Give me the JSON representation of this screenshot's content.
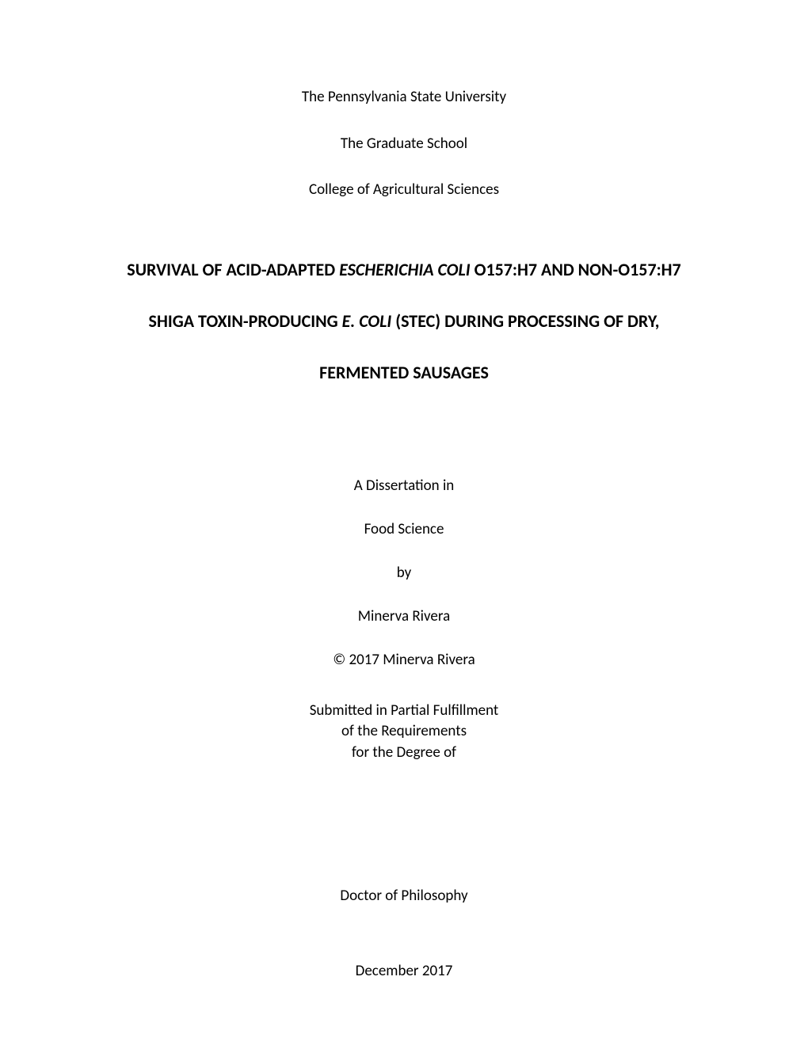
{
  "header": {
    "university": "The Pennsylvania State University",
    "school": "The Graduate School",
    "college": "College of Agricultural Sciences"
  },
  "title": {
    "line1_pre": "SURVIVAL OF ACID-ADAPTED ",
    "line1_italic": "ESCHERICHIA COLI",
    "line1_post": " O157:H7 AND NON-O157:H7",
    "line2_pre": "SHIGA TOXIN-PRODUCING ",
    "line2_italic": "E. COLI",
    "line2_post": " (STEC) DURING PROCESSING OF DRY,",
    "line3": "FERMENTED SAUSAGES"
  },
  "dissertation": {
    "intro": "A Dissertation in",
    "field": "Food Science",
    "by": "by",
    "author": "Minerva Rivera",
    "copyright": "© 2017 Minerva Rivera"
  },
  "submission": {
    "line1": "Submitted in Partial Fulfillment",
    "line2": "of the Requirements",
    "line3": "for the Degree of"
  },
  "degree": "Doctor of Philosophy",
  "date": "December 2017",
  "styles": {
    "page_bg": "#ffffff",
    "text_color": "#000000",
    "header_fontsize": 19,
    "title_fontsize": 22,
    "body_fontsize": 19
  }
}
